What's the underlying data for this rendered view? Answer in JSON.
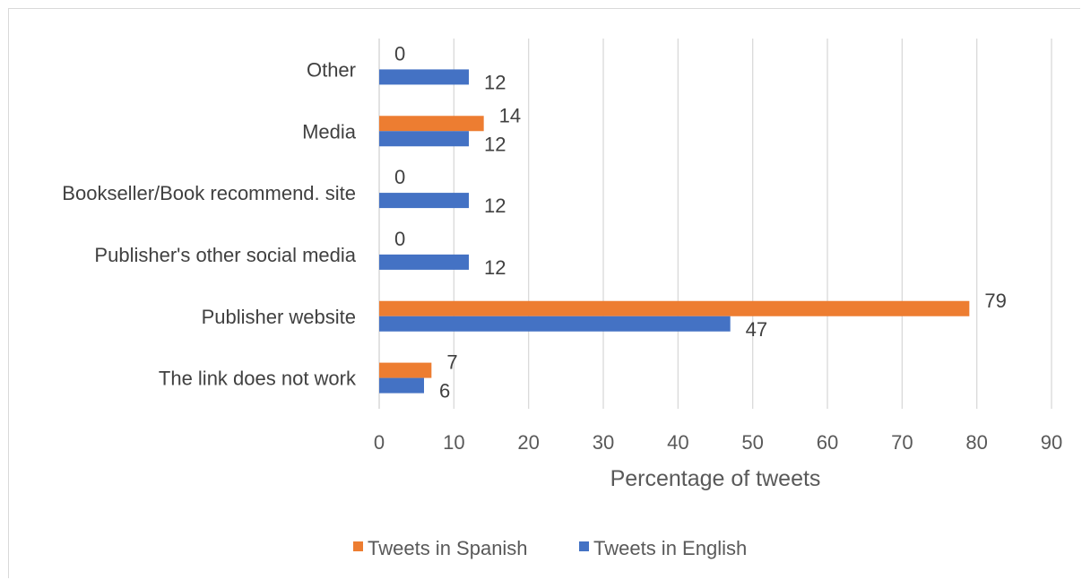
{
  "chart_data": {
    "type": "bar",
    "orientation": "horizontal",
    "categories": [
      "Other",
      "Media",
      "Bookseller/Book recommend. site",
      "Publisher's other social media",
      "Publisher website",
      "The link does not work"
    ],
    "series": [
      {
        "name": "Tweets in Spanish",
        "color": "#ED7D31",
        "values": [
          0,
          14,
          0,
          0,
          79,
          7
        ]
      },
      {
        "name": "Tweets in English",
        "color": "#4472C4",
        "values": [
          12,
          12,
          12,
          12,
          47,
          6
        ]
      }
    ],
    "title": "",
    "xlabel": "Percentage of tweets",
    "ylabel": "",
    "xlim": [
      0,
      90
    ],
    "xticks": [
      "0",
      "10",
      "20",
      "30",
      "40",
      "50",
      "60",
      "70",
      "80",
      "90"
    ],
    "grid": "vertical",
    "legend_position": "bottom"
  }
}
